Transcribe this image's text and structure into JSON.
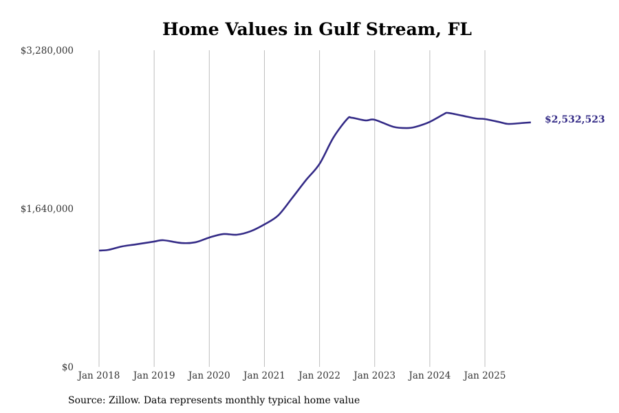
{
  "chart_data": {
    "type": "line",
    "title": "Home Values in Gulf Stream, FL",
    "source": "Source: Zillow. Data represents monthly typical home value",
    "xlabel": "",
    "ylabel": "",
    "ylim": [
      0,
      3280000
    ],
    "y_ticks": [
      {
        "value": 0,
        "label": "$0"
      },
      {
        "value": 1640000,
        "label": "$1,640,000"
      },
      {
        "value": 3280000,
        "label": "$3,280,000"
      }
    ],
    "x_ticks": [
      {
        "value": "2018-01",
        "label": "Jan 2018"
      },
      {
        "value": "2019-01",
        "label": "Jan 2019"
      },
      {
        "value": "2020-01",
        "label": "Jan 2020"
      },
      {
        "value": "2021-01",
        "label": "Jan 2021"
      },
      {
        "value": "2022-01",
        "label": "Jan 2022"
      },
      {
        "value": "2023-01",
        "label": "Jan 2023"
      },
      {
        "value": "2024-01",
        "label": "Jan 2024"
      },
      {
        "value": "2025-01",
        "label": "Jan 2025"
      }
    ],
    "grid": "vertical",
    "line_color": "#332a86",
    "last_value_label": "$2,532,523",
    "series": [
      {
        "x": [
          "2018-01",
          "2018-03",
          "2018-06",
          "2018-09",
          "2019-01",
          "2019-03",
          "2019-07",
          "2019-10",
          "2020-01",
          "2020-04",
          "2020-07",
          "2020-10",
          "2021-01",
          "2021-04",
          "2021-07",
          "2021-10",
          "2022-01",
          "2022-04",
          "2022-07",
          "2022-08",
          "2022-11",
          "2023-01",
          "2023-05",
          "2023-08",
          "2023-10",
          "2024-01",
          "2024-04",
          "2024-05",
          "2024-08",
          "2024-11",
          "2025-01",
          "2025-04",
          "2025-06",
          "2025-09",
          "2025-11"
        ],
        "y": [
          1205000,
          1212000,
          1248000,
          1269000,
          1298000,
          1312000,
          1283000,
          1291000,
          1340000,
          1376000,
          1369000,
          1405000,
          1476000,
          1569000,
          1747000,
          1932000,
          2103000,
          2374000,
          2567000,
          2581000,
          2553000,
          2560000,
          2488000,
          2474000,
          2488000,
          2538000,
          2617000,
          2631000,
          2603000,
          2574000,
          2567000,
          2538000,
          2517000,
          2526000,
          2532523
        ]
      }
    ]
  }
}
